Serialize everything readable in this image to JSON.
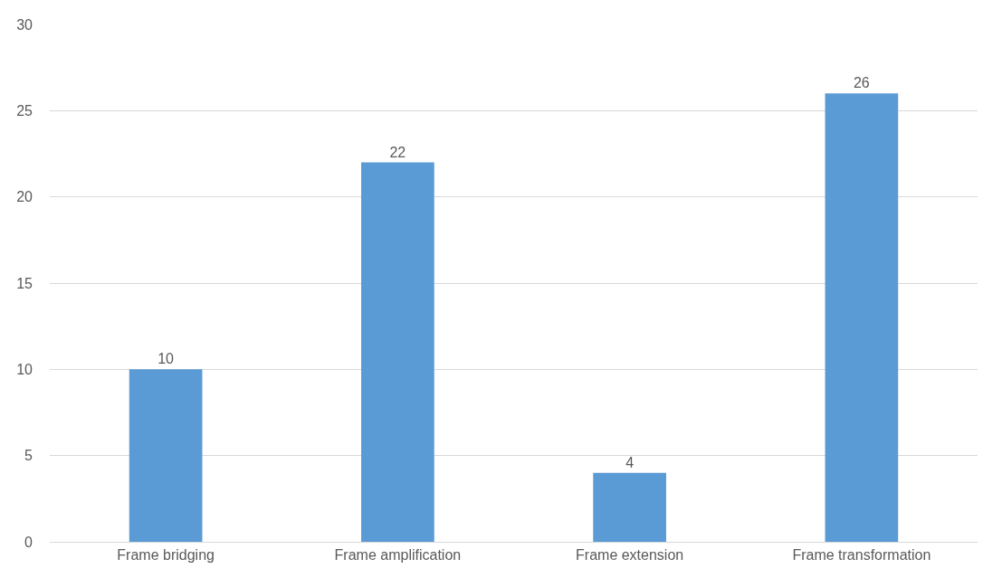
{
  "chart_data": {
    "type": "bar",
    "categories": [
      "Frame bridging",
      "Frame amplification",
      "Frame extension",
      "Frame transformation"
    ],
    "values": [
      10,
      22,
      4,
      26
    ],
    "color": "#5b9bd5",
    "ylim": [
      0,
      30
    ],
    "yticks": [
      0,
      5,
      10,
      15,
      20,
      25,
      30
    ],
    "grid": "y",
    "data_labels": true,
    "legend": false
  }
}
